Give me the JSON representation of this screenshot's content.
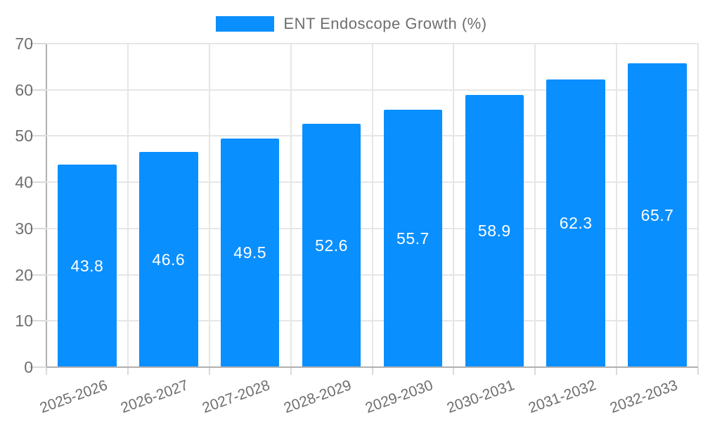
{
  "legend": {
    "label": "ENT Endoscope Growth (%)",
    "swatch_color": "#0a8fff"
  },
  "chart_data": {
    "type": "bar",
    "title": "ENT Endoscope Growth (%)",
    "categories": [
      "2025-2026",
      "2026-2027",
      "2027-2028",
      "2028-2029",
      "2029-2030",
      "2030-2031",
      "2031-2032",
      "2032-2033"
    ],
    "series": [
      {
        "name": "ENT Endoscope Growth (%)",
        "values": [
          43.8,
          46.6,
          49.5,
          52.6,
          55.7,
          58.9,
          62.3,
          65.7
        ],
        "color": "#0a8fff"
      }
    ],
    "value_labels": [
      43.8,
      46.6,
      49.5,
      52.6,
      55.7,
      58.9,
      62.3,
      65.7
    ],
    "value_label_color": "#ffffff",
    "xlabel": "",
    "ylabel": "",
    "ylim": [
      0,
      70
    ],
    "yticks": [
      0,
      10,
      20,
      30,
      40,
      50,
      60,
      70
    ],
    "grid": true,
    "legend_position": "top",
    "colors": {
      "bar": "#0a8fff",
      "axis_line": "#b0b0b0",
      "gridline": "#e6e6e6",
      "tick": "#dadada",
      "axis_text": "#6e6e6e"
    }
  }
}
